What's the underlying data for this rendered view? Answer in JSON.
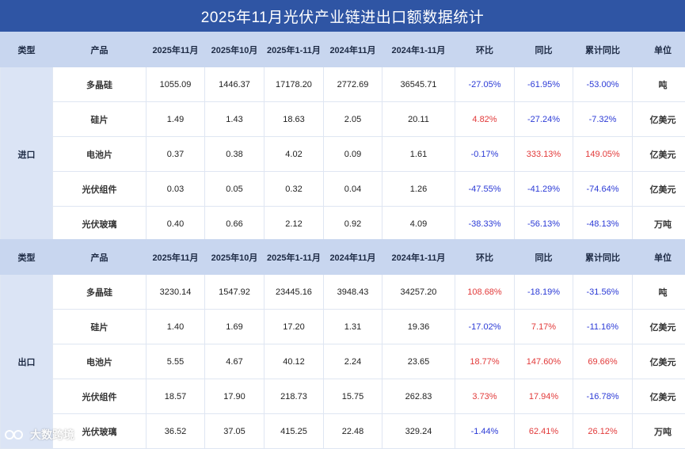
{
  "title": "2025年11月光伏产业链进出口额数据统计",
  "headers": [
    "类型",
    "产品",
    "2025年11月",
    "2025年10月",
    "2025年1-11月",
    "2024年11月",
    "2024年1-11月",
    "环比",
    "同比",
    "累计同比",
    "单位"
  ],
  "import": {
    "category": "进口",
    "rows": [
      {
        "product": "多晶硅",
        "v1": "1055.09",
        "v2": "1446.37",
        "v3": "17178.20",
        "v4": "2772.69",
        "v5": "36545.71",
        "mom": "-27.05%",
        "yoy": "-61.95%",
        "cum": "-53.00%",
        "unit": "吨"
      },
      {
        "product": "硅片",
        "v1": "1.49",
        "v2": "1.43",
        "v3": "18.63",
        "v4": "2.05",
        "v5": "20.11",
        "mom": "4.82%",
        "yoy": "-27.24%",
        "cum": "-7.32%",
        "unit": "亿美元"
      },
      {
        "product": "电池片",
        "v1": "0.37",
        "v2": "0.38",
        "v3": "4.02",
        "v4": "0.09",
        "v5": "1.61",
        "mom": "-0.17%",
        "yoy": "333.13%",
        "cum": "149.05%",
        "unit": "亿美元"
      },
      {
        "product": "光伏组件",
        "v1": "0.03",
        "v2": "0.05",
        "v3": "0.32",
        "v4": "0.04",
        "v5": "1.26",
        "mom": "-47.55%",
        "yoy": "-41.29%",
        "cum": "-74.64%",
        "unit": "亿美元"
      },
      {
        "product": "光伏玻璃",
        "v1": "0.40",
        "v2": "0.66",
        "v3": "2.12",
        "v4": "0.92",
        "v5": "4.09",
        "mom": "-38.33%",
        "yoy": "-56.13%",
        "cum": "-48.13%",
        "unit": "万吨"
      }
    ]
  },
  "export": {
    "category": "出口",
    "rows": [
      {
        "product": "多晶硅",
        "v1": "3230.14",
        "v2": "1547.92",
        "v3": "23445.16",
        "v4": "3948.43",
        "v5": "34257.20",
        "mom": "108.68%",
        "yoy": "-18.19%",
        "cum": "-31.56%",
        "unit": "吨"
      },
      {
        "product": "硅片",
        "v1": "1.40",
        "v2": "1.69",
        "v3": "17.20",
        "v4": "1.31",
        "v5": "19.36",
        "mom": "-17.02%",
        "yoy": "7.17%",
        "cum": "-11.16%",
        "unit": "亿美元"
      },
      {
        "product": "电池片",
        "v1": "5.55",
        "v2": "4.67",
        "v3": "40.12",
        "v4": "2.24",
        "v5": "23.65",
        "mom": "18.77%",
        "yoy": "147.60%",
        "cum": "69.66%",
        "unit": "亿美元"
      },
      {
        "product": "光伏组件",
        "v1": "18.57",
        "v2": "17.90",
        "v3": "218.73",
        "v4": "15.75",
        "v5": "262.83",
        "mom": "3.73%",
        "yoy": "17.94%",
        "cum": "-16.78%",
        "unit": "亿美元"
      },
      {
        "product": "光伏玻璃",
        "v1": "36.52",
        "v2": "37.05",
        "v3": "415.25",
        "v4": "22.48",
        "v5": "329.24",
        "mom": "-1.44%",
        "yoy": "62.41%",
        "cum": "26.12%",
        "unit": "万吨"
      }
    ]
  },
  "colors": {
    "title_bg": "#2f55a4",
    "header_bg": "#c8d6ef",
    "category_bg": "#dbe4f5",
    "negative": "#2b3ad6",
    "positive": "#e23a3a"
  },
  "watermark": {
    "text": "大数跨境"
  }
}
